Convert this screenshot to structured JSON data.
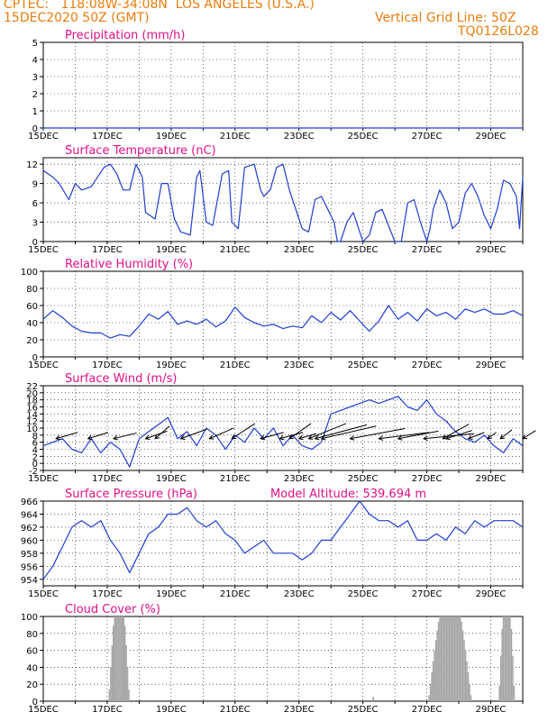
{
  "header": {
    "line1": "CPTEC:   118:08W-34:08N  LOS ANGELES (U.S.A.)",
    "line2": "15DEC2020 50Z (GMT)",
    "grid_note": "Vertical Grid Line: 50Z",
    "code": "TQ0126L028"
  },
  "colors": {
    "header": "#e87d0e",
    "title": "#e0108a",
    "series": "#1f3ed6",
    "wind_arrow": "#000000",
    "cloud_bars": "#a6a6a6",
    "grid": "#000000"
  },
  "x_axis": {
    "tick_labels": [
      "15DEC",
      "17DEC",
      "19DEC",
      "21DEC",
      "23DEC",
      "25DEC",
      "27DEC",
      "29DEC"
    ],
    "tick_days": [
      0,
      2,
      4,
      6,
      8,
      10,
      12,
      14
    ],
    "range_days": [
      0,
      15
    ]
  },
  "chart_data": [
    {
      "type": "line",
      "title": "Precipitation (mm/h)",
      "ylim": [
        0,
        5
      ],
      "yticks": [
        0,
        1,
        2,
        3,
        4,
        5
      ],
      "series": [
        {
          "x": [
            0,
            15
          ],
          "y": [
            0,
            0
          ]
        }
      ]
    },
    {
      "type": "line",
      "title": "Surface Temperature (nC)",
      "ylim": [
        0,
        13
      ],
      "yticks": [
        0,
        3,
        6,
        9,
        12
      ],
      "series": [
        {
          "x": [
            0,
            0.3,
            0.5,
            0.8,
            1,
            1.2,
            1.5,
            1.9,
            2.1,
            2.3,
            2.5,
            2.7,
            2.9,
            3.1,
            3.2,
            3.5,
            3.7,
            3.9,
            4.1,
            4.3,
            4.6,
            4.8,
            4.9,
            5.1,
            5.3,
            5.6,
            5.8,
            5.9,
            6.1,
            6.3,
            6.6,
            6.8,
            6.9,
            7.1,
            7.3,
            7.5,
            7.7,
            7.9,
            8.1,
            8.3,
            8.5,
            8.7,
            8.9,
            9.1,
            9.2,
            9.3,
            9.5,
            9.7,
            9.9,
            10,
            10.2,
            10.4,
            10.6,
            10.8,
            11.0,
            11.2,
            11.4,
            11.6,
            11.8,
            12.0,
            12.1,
            12.2,
            12.4,
            12.6,
            12.8,
            13.0,
            13.2,
            13.4,
            13.6,
            13.8,
            14.0,
            14.2,
            14.4,
            14.6,
            14.8,
            14.9,
            15
          ],
          "y": [
            11,
            10,
            9,
            6.5,
            9,
            8,
            8.5,
            11.5,
            12,
            10.5,
            8,
            8,
            12,
            10,
            4.5,
            3.5,
            9,
            9,
            3.5,
            1.5,
            1,
            10,
            11,
            3,
            2.5,
            10.5,
            11,
            3,
            2,
            11.5,
            12,
            8,
            7,
            8,
            11.5,
            12,
            8,
            5,
            2,
            1.5,
            6.5,
            7,
            5,
            3,
            -0.5,
            -1,
            3,
            4.5,
            1.5,
            0,
            1,
            4.5,
            5,
            2.5,
            0,
            0,
            6,
            6.5,
            3,
            -0.5,
            2,
            5,
            8,
            6,
            2,
            3,
            7.5,
            9,
            7,
            4,
            2,
            5,
            9.5,
            9,
            7,
            2,
            10
          ]
        }
      ]
    },
    {
      "type": "line",
      "title": "Relative Humidity (%)",
      "ylim": [
        0,
        100
      ],
      "yticks": [
        0,
        20,
        40,
        60,
        80,
        100
      ],
      "series": [
        {
          "x": [
            0,
            0.3,
            0.6,
            0.9,
            1.2,
            1.5,
            1.8,
            2.1,
            2.4,
            2.7,
            3.0,
            3.3,
            3.6,
            3.9,
            4.2,
            4.5,
            4.8,
            5.1,
            5.4,
            5.7,
            6.0,
            6.3,
            6.6,
            6.9,
            7.2,
            7.5,
            7.8,
            8.1,
            8.4,
            8.7,
            9.0,
            9.3,
            9.6,
            9.9,
            10.2,
            10.5,
            10.8,
            11.1,
            11.4,
            11.7,
            12.0,
            12.3,
            12.6,
            12.9,
            13.2,
            13.5,
            13.8,
            14.1,
            14.4,
            14.7,
            15
          ],
          "y": [
            44,
            54,
            46,
            36,
            30,
            28,
            28,
            22,
            26,
            24,
            36,
            50,
            44,
            53,
            38,
            42,
            38,
            44,
            35,
            42,
            58,
            46,
            40,
            36,
            38,
            33,
            36,
            34,
            48,
            40,
            52,
            43,
            54,
            42,
            30,
            42,
            60,
            44,
            52,
            42,
            56,
            48,
            52,
            44,
            56,
            52,
            56,
            50,
            50,
            54,
            48
          ]
        }
      ]
    },
    {
      "type": "line",
      "title": "Surface Wind (m/s)",
      "ylim": [
        -2,
        22
      ],
      "yticks": [
        -2,
        0,
        2,
        4,
        6,
        8,
        10,
        12,
        14,
        16,
        18,
        20,
        22
      ],
      "series": [
        {
          "x": [
            0,
            0.3,
            0.6,
            0.9,
            1.2,
            1.5,
            1.8,
            2.1,
            2.4,
            2.7,
            3.0,
            3.3,
            3.6,
            3.9,
            4.2,
            4.5,
            4.8,
            5.1,
            5.4,
            5.7,
            6.0,
            6.3,
            6.6,
            6.9,
            7.2,
            7.5,
            7.8,
            8.1,
            8.4,
            8.7,
            9.0,
            9.3,
            9.6,
            9.9,
            10.2,
            10.5,
            10.8,
            11.1,
            11.4,
            11.7,
            12.0,
            12.3,
            12.6,
            12.9,
            13.2,
            13.5,
            13.8,
            14.1,
            14.4,
            14.7,
            15
          ],
          "y": [
            5,
            6,
            7,
            4,
            3,
            7,
            3,
            6,
            4,
            -1,
            7,
            9,
            11,
            13,
            7,
            9,
            5,
            10,
            8,
            4,
            8,
            6,
            10,
            7,
            10,
            5,
            8,
            5,
            4,
            6,
            14,
            15,
            16,
            17,
            18,
            17,
            18,
            19,
            16,
            15,
            18,
            14,
            12,
            9,
            7,
            6,
            8,
            5,
            3,
            7,
            5
          ]
        }
      ],
      "wind_arrows": [
        {
          "x": 0.4,
          "u": 1.5,
          "v": 1
        },
        {
          "x": 1.4,
          "u": 1.4,
          "v": 1
        },
        {
          "x": 2.2,
          "u": 1.6,
          "v": 0.9
        },
        {
          "x": 3.2,
          "u": 1.5,
          "v": 1.2
        },
        {
          "x": 3.5,
          "u": 1,
          "v": 2
        },
        {
          "x": 4.3,
          "u": 1.8,
          "v": 1.5
        },
        {
          "x": 5.2,
          "u": 1.7,
          "v": 1.7
        },
        {
          "x": 5.9,
          "u": 1.6,
          "v": 2.4
        },
        {
          "x": 6.8,
          "u": 1.6,
          "v": 1
        },
        {
          "x": 7.4,
          "u": 1.6,
          "v": 1
        },
        {
          "x": 8.0,
          "u": 1.2,
          "v": 0.8
        },
        {
          "x": 7.7,
          "u": 1.5,
          "v": 2.4
        },
        {
          "x": 8.3,
          "u": 2.6,
          "v": 2.4
        },
        {
          "x": 8.5,
          "u": 3.6,
          "v": 2.2
        },
        {
          "x": 8.7,
          "u": 3.8,
          "v": 2
        },
        {
          "x": 9.6,
          "u": 3.8,
          "v": 1.6
        },
        {
          "x": 10.5,
          "u": 3.5,
          "v": 1
        },
        {
          "x": 11.1,
          "u": 2.8,
          "v": 1.2
        },
        {
          "x": 11.9,
          "u": 3.5,
          "v": 0.8
        },
        {
          "x": 12.5,
          "u": 1.8,
          "v": 2.3
        },
        {
          "x": 12.6,
          "u": 1.8,
          "v": 1.3
        },
        {
          "x": 13.3,
          "u": 1.1,
          "v": 1
        },
        {
          "x": 13.9,
          "u": 0.6,
          "v": 1
        },
        {
          "x": 14.3,
          "u": 0.8,
          "v": 1.4
        },
        {
          "x": 15.0,
          "u": 0.9,
          "v": 1.3
        }
      ]
    },
    {
      "type": "line",
      "title": "Surface Pressure (hPa)",
      "annotation": "Model Altitude: 539.694  m",
      "ylim": [
        953,
        966
      ],
      "yticks": [
        954,
        956,
        958,
        960,
        962,
        964,
        966
      ],
      "series": [
        {
          "x": [
            0,
            0.3,
            0.6,
            0.9,
            1.2,
            1.5,
            1.8,
            2.1,
            2.4,
            2.7,
            3.0,
            3.3,
            3.6,
            3.9,
            4.2,
            4.5,
            4.8,
            5.1,
            5.4,
            5.7,
            6.0,
            6.3,
            6.6,
            6.9,
            7.2,
            7.5,
            7.8,
            8.1,
            8.4,
            8.7,
            9.0,
            9.3,
            9.6,
            9.9,
            10.2,
            10.5,
            10.8,
            11.1,
            11.4,
            11.7,
            12.0,
            12.3,
            12.6,
            12.9,
            13.2,
            13.5,
            13.8,
            14.1,
            14.4,
            14.7,
            15
          ],
          "y": [
            954,
            956,
            959,
            962,
            963,
            962,
            963,
            960,
            958,
            955,
            958,
            961,
            962,
            964,
            964,
            965,
            963,
            962,
            963,
            961,
            960,
            958,
            959,
            960,
            958,
            958,
            958,
            957,
            958,
            960,
            960,
            962,
            964,
            966,
            964,
            963,
            963,
            962,
            963,
            960,
            960,
            961,
            960,
            962,
            961,
            963,
            962,
            963,
            963,
            963,
            962
          ]
        }
      ]
    },
    {
      "type": "bar",
      "title": "Cloud Cover (%)",
      "ylim": [
        0,
        100
      ],
      "yticks": [
        0,
        20,
        40,
        60,
        80,
        100
      ],
      "segments": [
        {
          "x0": 2.05,
          "x1": 2.7,
          "peak": 100
        },
        {
          "x0": 10.3,
          "x1": 10.35,
          "peak": 5
        },
        {
          "x0": 12.05,
          "x1": 13.4,
          "peak": 100
        },
        {
          "x0": 14.25,
          "x1": 14.75,
          "peak": 100
        }
      ]
    }
  ]
}
